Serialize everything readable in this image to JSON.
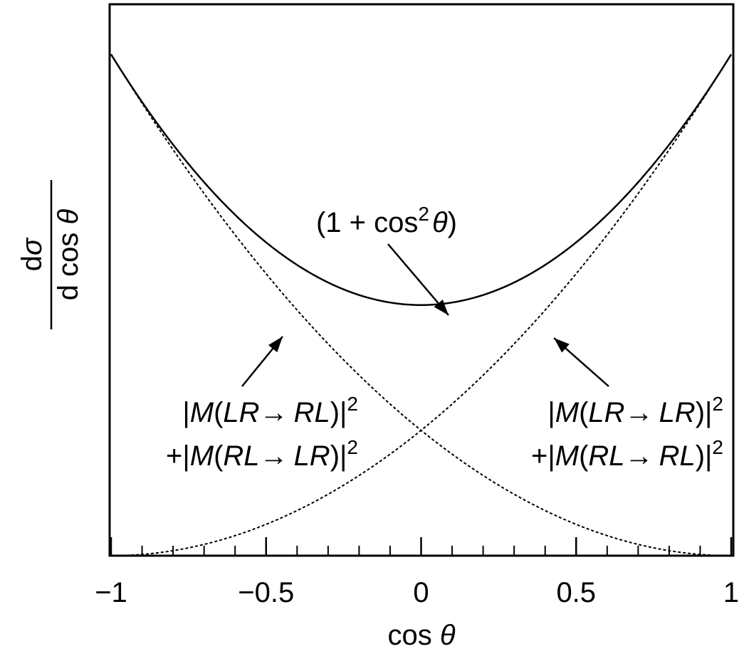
{
  "chart_data": {
    "type": "line",
    "xlabel_text": "cos",
    "xlabel_symbol": "θ",
    "ylabel": {
      "numerator_d": "d",
      "numerator_symbol": "σ",
      "denominator": "d cos",
      "denominator_symbol": "θ"
    },
    "xlim": [
      -1,
      1
    ],
    "ylim": [
      0,
      2.2
    ],
    "major_ticks": [
      -1,
      -0.5,
      0,
      0.5,
      1
    ],
    "minor_ticks": [
      -0.9,
      -0.8,
      -0.7,
      -0.6,
      -0.4,
      -0.3,
      -0.2,
      -0.1,
      0.1,
      0.2,
      0.3,
      0.4,
      0.6,
      0.7,
      0.8,
      0.9
    ],
    "tick_labels": [
      "−1",
      "−0.5",
      "0",
      "0.5",
      "1"
    ],
    "grid": false,
    "series": [
      {
        "key": "total",
        "formula": "1 + x^2",
        "style": "solid",
        "x": [
          -1,
          -0.75,
          -0.5,
          -0.25,
          0,
          0.25,
          0.5,
          0.75,
          1
        ],
        "y": [
          2,
          1.5625,
          1.25,
          1.0625,
          1,
          1.0625,
          1.25,
          1.5625,
          2
        ]
      },
      {
        "key": "lr_to_rl",
        "formula": "(1 - x)^2 / 2",
        "style": "dotted",
        "x": [
          -1,
          -0.75,
          -0.5,
          -0.25,
          0,
          0.25,
          0.5,
          0.75,
          1
        ],
        "y": [
          2,
          1.53125,
          1.125,
          0.78125,
          0.5,
          0.28125,
          0.125,
          0.03125,
          0
        ]
      },
      {
        "key": "lr_to_lr",
        "formula": "(1 + x)^2 / 2",
        "style": "dotted",
        "x": [
          -1,
          -0.75,
          -0.5,
          -0.25,
          0,
          0.25,
          0.5,
          0.75,
          1
        ],
        "y": [
          0,
          0.03125,
          0.125,
          0.28125,
          0.5,
          0.78125,
          1.125,
          1.53125,
          2
        ]
      }
    ],
    "annotations": {
      "total": {
        "open": "(1 + cos",
        "sup": "2",
        "theta": "θ",
        "close": ")"
      },
      "left": {
        "line1": {
          "pre": "|",
          "m": "M",
          "lp": "(",
          "a": "LR",
          "arrow": "→",
          "b": "RL",
          "rp": ")|",
          "sup": "2"
        },
        "line2": {
          "pre": "+|",
          "m": "M",
          "lp": "(",
          "a": "RL",
          "arrow": "→",
          "b": "LR",
          "rp": ")|",
          "sup": "2"
        }
      },
      "right": {
        "line1": {
          "pre": "|",
          "m": "M",
          "lp": "(",
          "a": "LR",
          "arrow": "→",
          "b": "LR",
          "rp": ")|",
          "sup": "2"
        },
        "line2": {
          "pre": "+|",
          "m": "M",
          "lp": "(",
          "a": "RL",
          "arrow": "→",
          "b": "RL",
          "rp": ")|",
          "sup": "2"
        }
      }
    }
  }
}
